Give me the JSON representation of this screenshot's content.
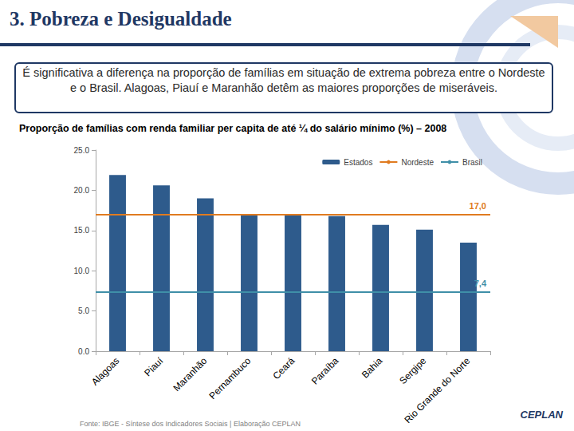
{
  "slide": {
    "title": "3. Pobreza e Desigualdade",
    "highlight": "É significativa a diferença na  proporção de famílias em situação de extrema pobreza entre o Nordeste e o Brasil. Alagoas, Piauí e Maranhão detêm as maiores proporções de miseráveis.",
    "source": "Fonte: IBGE - Síntese dos Indicadores Sociais | Elaboração CEPLAN",
    "logo": "CEPLAN"
  },
  "chart_data": {
    "type": "bar",
    "title": "Proporção de famílias com renda familiar per capita de até ¼ do salário mínimo (%) – 2008",
    "categories": [
      "Alagoas",
      "Piauí",
      "Maranhão",
      "Pernambuco",
      "Ceará",
      "Paraíba",
      "Bahia",
      "Sergipe",
      "Rio Grande do Norte"
    ],
    "series": [
      {
        "name": "Estados",
        "type": "bar",
        "color": "#2e5b8c",
        "values": [
          21.9,
          20.6,
          19.0,
          17.0,
          16.9,
          16.8,
          15.7,
          15.1,
          13.5
        ]
      },
      {
        "name": "Nordeste",
        "type": "hline",
        "color": "#e07b20",
        "value": 17.0,
        "value_label": "17,0"
      },
      {
        "name": "Brasil",
        "type": "hline",
        "color": "#3f8fa8",
        "value": 7.4,
        "value_label": "7,4"
      }
    ],
    "ylim": [
      0,
      25
    ],
    "yticks": [
      {
        "value": 0,
        "label": "0.0"
      },
      {
        "value": 5,
        "label": "5.0"
      },
      {
        "value": 10,
        "label": "10.0"
      },
      {
        "value": 15,
        "label": "15.0"
      },
      {
        "value": 20,
        "label": "20.0"
      },
      {
        "value": 25,
        "label": "25.0"
      }
    ],
    "grid": false,
    "legend": "upper right"
  }
}
